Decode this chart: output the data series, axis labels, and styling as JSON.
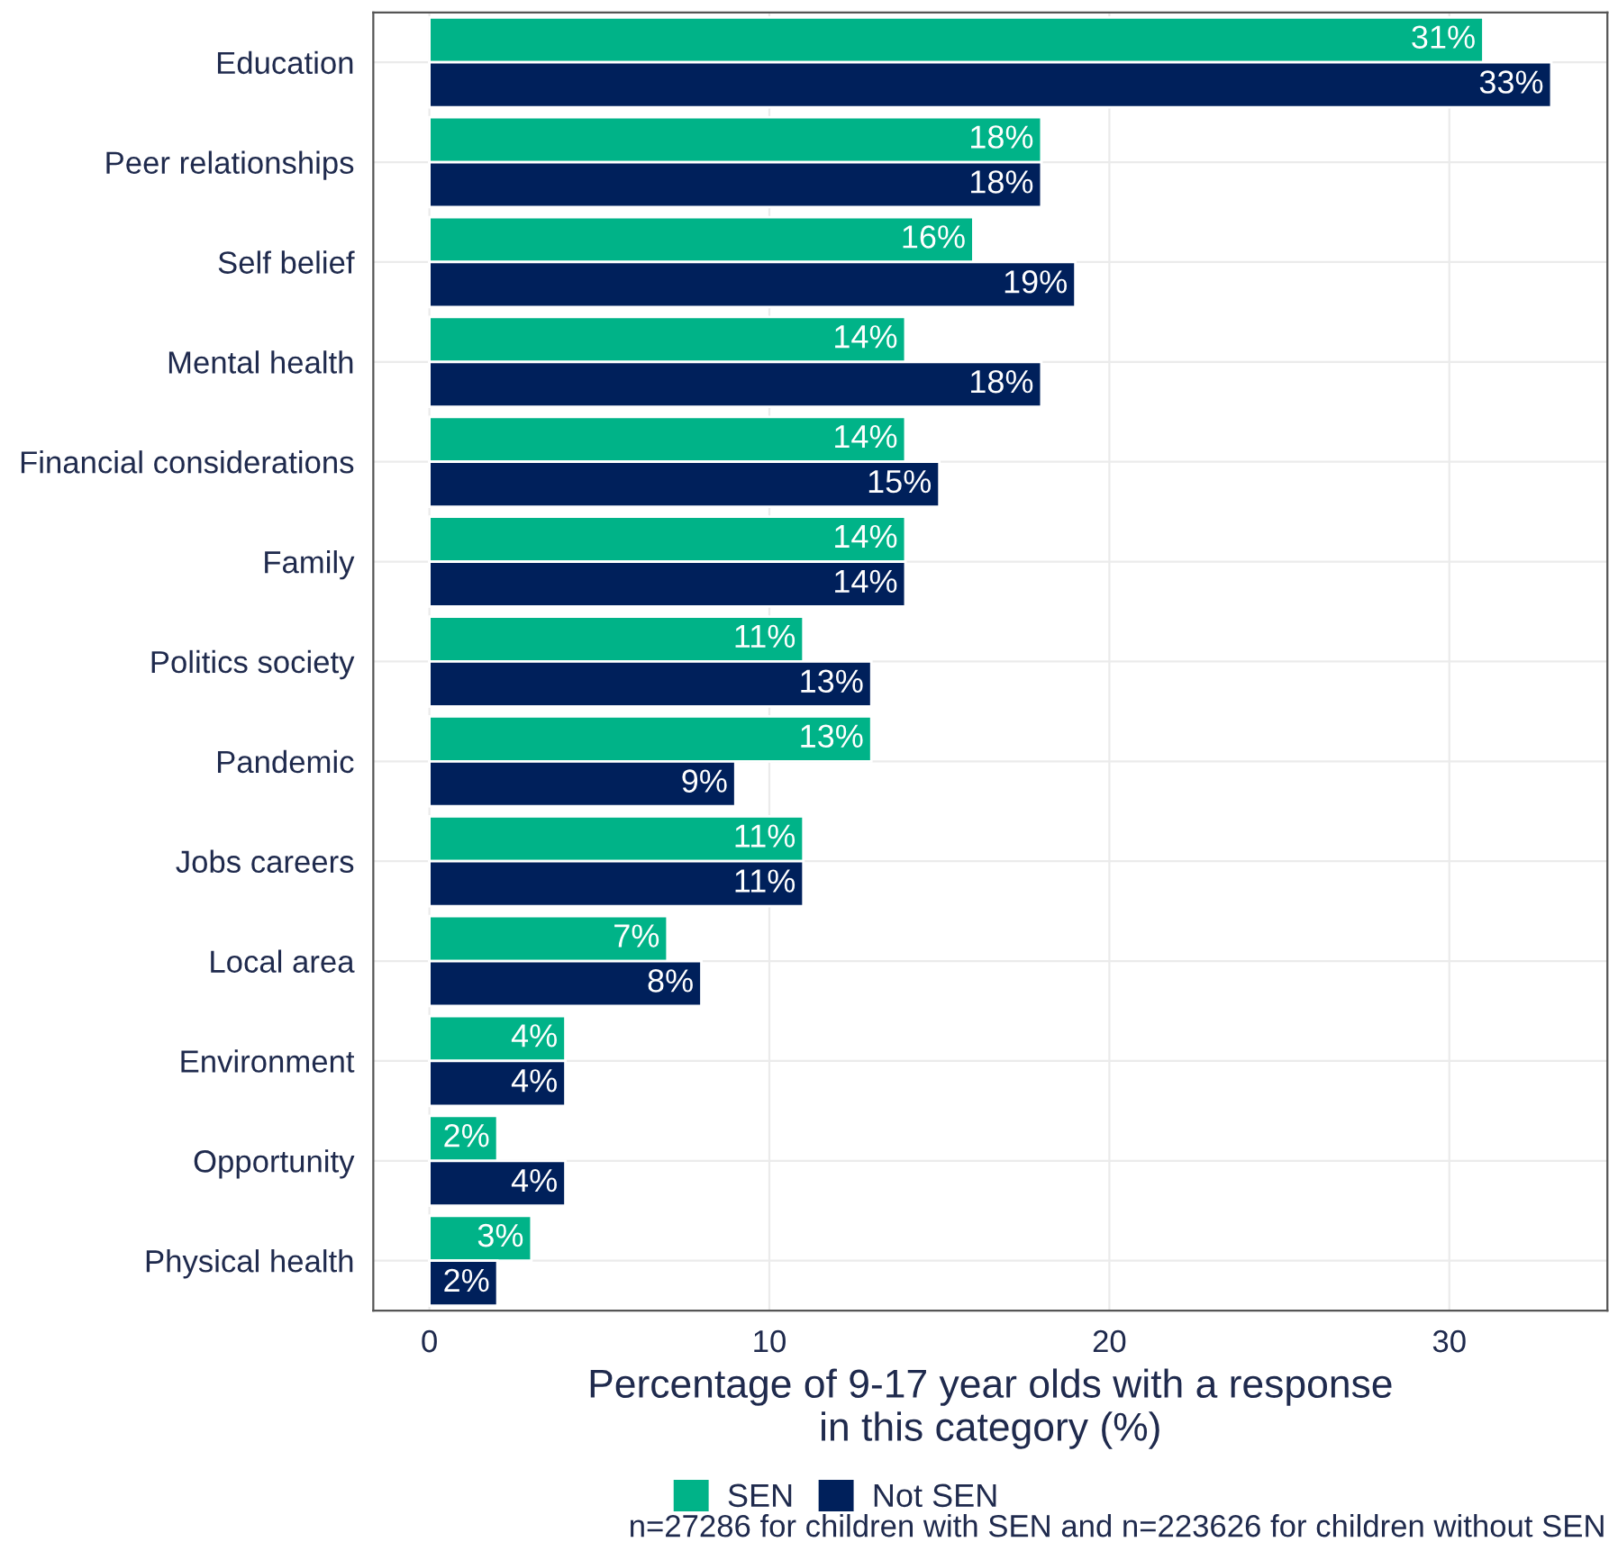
{
  "chart_data": {
    "type": "bar",
    "orientation": "horizontal",
    "categories": [
      "Education",
      "Peer relationships",
      "Self belief",
      "Mental health",
      "Financial considerations",
      "Family",
      "Politics society",
      "Pandemic",
      "Jobs careers",
      "Local area",
      "Environment",
      "Opportunity",
      "Physical health"
    ],
    "series": [
      {
        "name": "SEN",
        "color": "#00b388",
        "values": [
          31,
          18,
          16,
          14,
          14,
          14,
          11,
          13,
          11,
          7,
          4,
          2,
          3
        ],
        "value_labels": [
          "31%",
          "18%",
          "16%",
          "14%",
          "14%",
          "14%",
          "11%",
          "13%",
          "11%",
          "7%",
          "4%",
          "2%",
          "3%"
        ]
      },
      {
        "name": "Not SEN",
        "color": "#00205b",
        "values": [
          33,
          18,
          19,
          18,
          15,
          14,
          13,
          9,
          11,
          8,
          4,
          4,
          2
        ],
        "value_labels": [
          "33%",
          "18%",
          "19%",
          "18%",
          "15%",
          "14%",
          "13%",
          "9%",
          "11%",
          "8%",
          "4%",
          "4%",
          "2%"
        ]
      }
    ],
    "xlabel": "Percentage of 9-17 year olds with a response\nin this category (%)",
    "xlim": [
      -1.65,
      34.65
    ],
    "xticks": [
      0,
      10,
      20,
      30
    ],
    "grid": true,
    "legend": "bottom",
    "annotations": [
      "n=27286 for children with SEN and n=223626 for children without SEN"
    ]
  }
}
